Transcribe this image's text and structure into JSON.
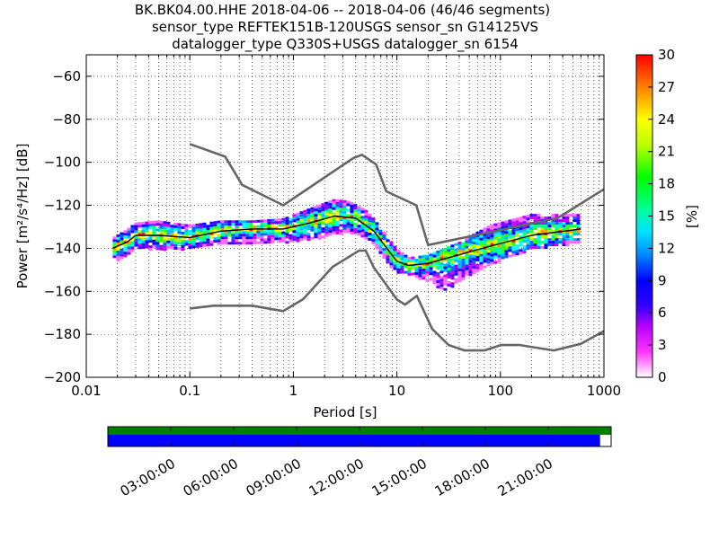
{
  "title": {
    "line1": "BK.BK04.00.HHE   2018-04-06 -- 2018-04-06  (46/46 segments)",
    "line2": "sensor_type REFTEK151B-120USGS sensor_sn G14125VS",
    "line3": "datalogger_type Q330S+USGS datalogger_sn 6154"
  },
  "chart_data": {
    "type": "heatmap",
    "xlabel": "Period [s]",
    "ylabel": "Power [m²/s⁴/Hz] [dB]",
    "xscale": "log",
    "xlim": [
      0.01,
      1000
    ],
    "ylim": [
      -200,
      -50
    ],
    "xticks": [
      "0.01",
      "0.1",
      "1",
      "10",
      "100",
      "1000"
    ],
    "yticks": [
      -60,
      -80,
      -100,
      -120,
      -140,
      -160,
      -180,
      -200
    ],
    "grid": true,
    "colorbar": {
      "label": "[%]",
      "min": 0,
      "max": 30,
      "ticks": [
        0,
        3,
        6,
        9,
        12,
        15,
        18,
        21,
        24,
        27,
        30
      ]
    },
    "series": [
      {
        "role": "noise_model_high",
        "color": "#666666",
        "x": [
          0.1,
          0.22,
          0.32,
          0.8,
          3.8,
          4.6,
          6.3,
          7.9,
          15.4,
          20,
          354.8,
          1000
        ],
        "y": [
          -91.5,
          -97.4,
          -110.5,
          -120,
          -98,
          -96.5,
          -101,
          -113.5,
          -120,
          -138.5,
          -126,
          -112.5
        ]
      },
      {
        "role": "noise_model_low",
        "color": "#666666",
        "x": [
          0.1,
          0.17,
          0.4,
          0.8,
          1.24,
          2.4,
          4.3,
          5,
          6,
          10,
          12,
          15.6,
          21.9,
          31.6,
          45,
          70,
          101,
          154,
          328,
          600,
          1000
        ],
        "y": [
          -168,
          -166.7,
          -166.7,
          -169.2,
          -163.7,
          -148.6,
          -141.1,
          -141.1,
          -149,
          -163.8,
          -166.2,
          -162.1,
          -177.5,
          -185,
          -187.5,
          -187.5,
          -185,
          -185,
          -187.5,
          -184.4,
          -178.5
        ]
      },
      {
        "role": "mode_line",
        "color": "#000000",
        "x": [
          0.018,
          0.025,
          0.03,
          0.05,
          0.1,
          0.2,
          0.4,
          0.8,
          1.5,
          2.5,
          4,
          6,
          8,
          10,
          13,
          20,
          40,
          80,
          200,
          600
        ],
        "y": [
          -140,
          -137,
          -134,
          -134,
          -135,
          -132,
          -131,
          -131,
          -128,
          -125,
          -126,
          -132,
          -140,
          -146,
          -148,
          -147,
          -143,
          -139,
          -134,
          -131
        ]
      },
      {
        "role": "spread_upper",
        "x": [
          0.018,
          0.025,
          0.03,
          0.05,
          0.1,
          0.2,
          0.4,
          0.8,
          1.5,
          2.5,
          3.5,
          5,
          6,
          8,
          10,
          13,
          20,
          40,
          80,
          200,
          600
        ],
        "y": [
          -135,
          -131,
          -128,
          -127,
          -129,
          -127,
          -127,
          -126,
          -121,
          -117,
          -118,
          -122,
          -126,
          -134,
          -140,
          -144,
          -143,
          -137,
          -129,
          -124,
          -124
        ]
      },
      {
        "role": "spread_lower",
        "x": [
          0.018,
          0.025,
          0.03,
          0.05,
          0.1,
          0.2,
          0.4,
          0.8,
          1.5,
          2.5,
          3.5,
          5,
          6,
          8,
          10,
          13,
          20,
          30,
          40,
          80,
          200,
          600
        ],
        "y": [
          -146,
          -143,
          -140,
          -140,
          -140,
          -138,
          -137,
          -137,
          -136,
          -133,
          -132,
          -135,
          -138,
          -146,
          -151,
          -152,
          -155,
          -160,
          -155,
          -147,
          -140,
          -137
        ]
      }
    ]
  },
  "timeline": {
    "ticks": [
      "03:00:00",
      "06:00:00",
      "09:00:00",
      "12:00:00",
      "15:00:00",
      "18:00:00",
      "21:00:00"
    ],
    "coverage_fraction": 0.978,
    "top_color": "#008000",
    "bottom_color": "#0000ff"
  }
}
